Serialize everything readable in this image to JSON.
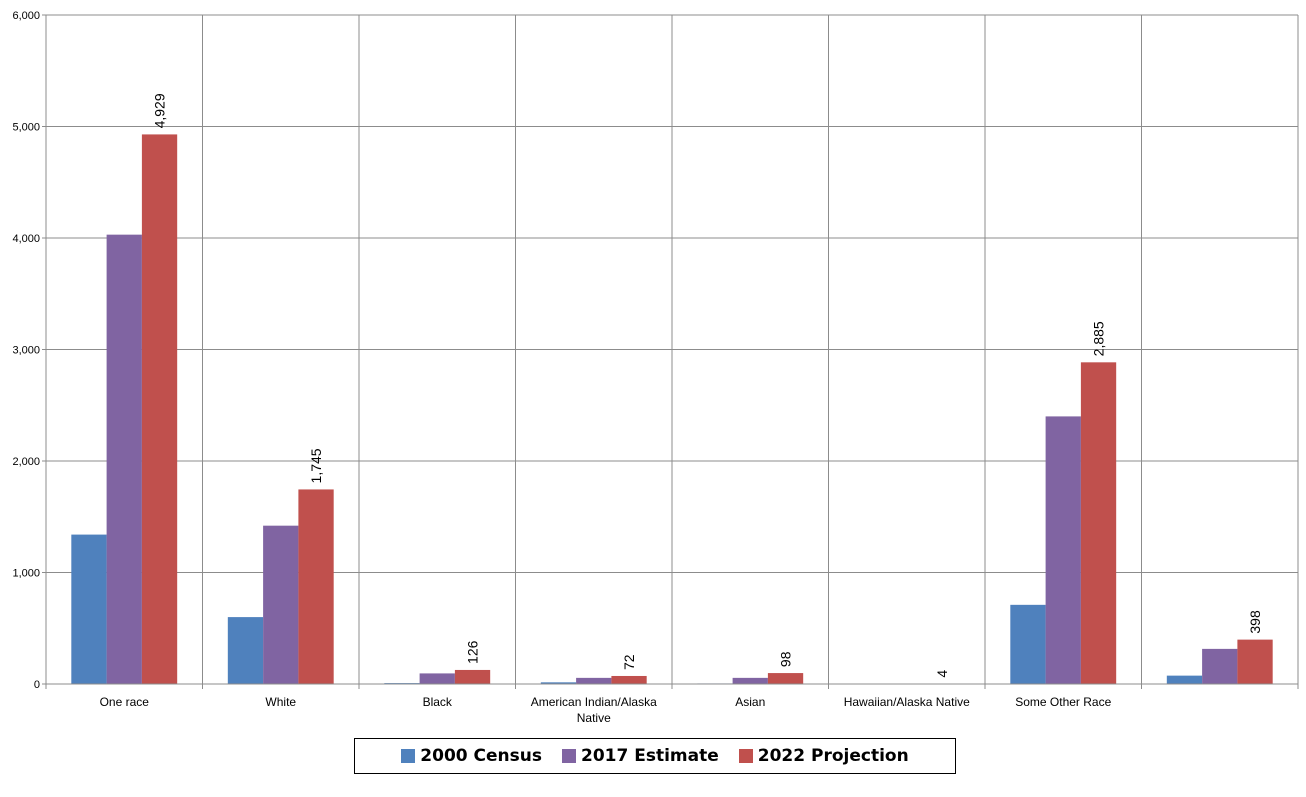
{
  "chart_data": {
    "type": "bar",
    "categories": [
      "One race",
      "White",
      "Black",
      "American Indian/Alaska Native",
      "Asian",
      "Hawaiian/Alaska Native",
      "Some Other Race",
      ""
    ],
    "category_lines": [
      [
        "One race"
      ],
      [
        "White"
      ],
      [
        "Black"
      ],
      [
        "American Indian/Alaska",
        "Native"
      ],
      [
        "Asian"
      ],
      [
        "Hawaiian/Alaska Native"
      ],
      [
        "Some Other Race"
      ],
      []
    ],
    "series": [
      {
        "name": "2000 Census",
        "color": "#4F81BD",
        "values": [
          1340,
          600,
          8,
          15,
          5,
          1,
          710,
          75
        ]
      },
      {
        "name": "2017 Estimate",
        "color": "#8064A2",
        "values": [
          4030,
          1420,
          95,
          55,
          55,
          3,
          2400,
          315
        ]
      },
      {
        "name": "2022 Projection",
        "color": "#C0504D",
        "values": [
          4929,
          1745,
          126,
          72,
          98,
          4,
          2885,
          398
        ]
      }
    ],
    "data_labels": [
      "4,929",
      "1,745",
      "126",
      "72",
      "98",
      "4",
      "2,885",
      "398"
    ],
    "y_ticks": [
      "0",
      "1,000",
      "2,000",
      "3,000",
      "4,000",
      "5,000",
      "6,000"
    ],
    "ylim": [
      0,
      6000
    ],
    "grid": true,
    "legend_position": "bottom"
  }
}
